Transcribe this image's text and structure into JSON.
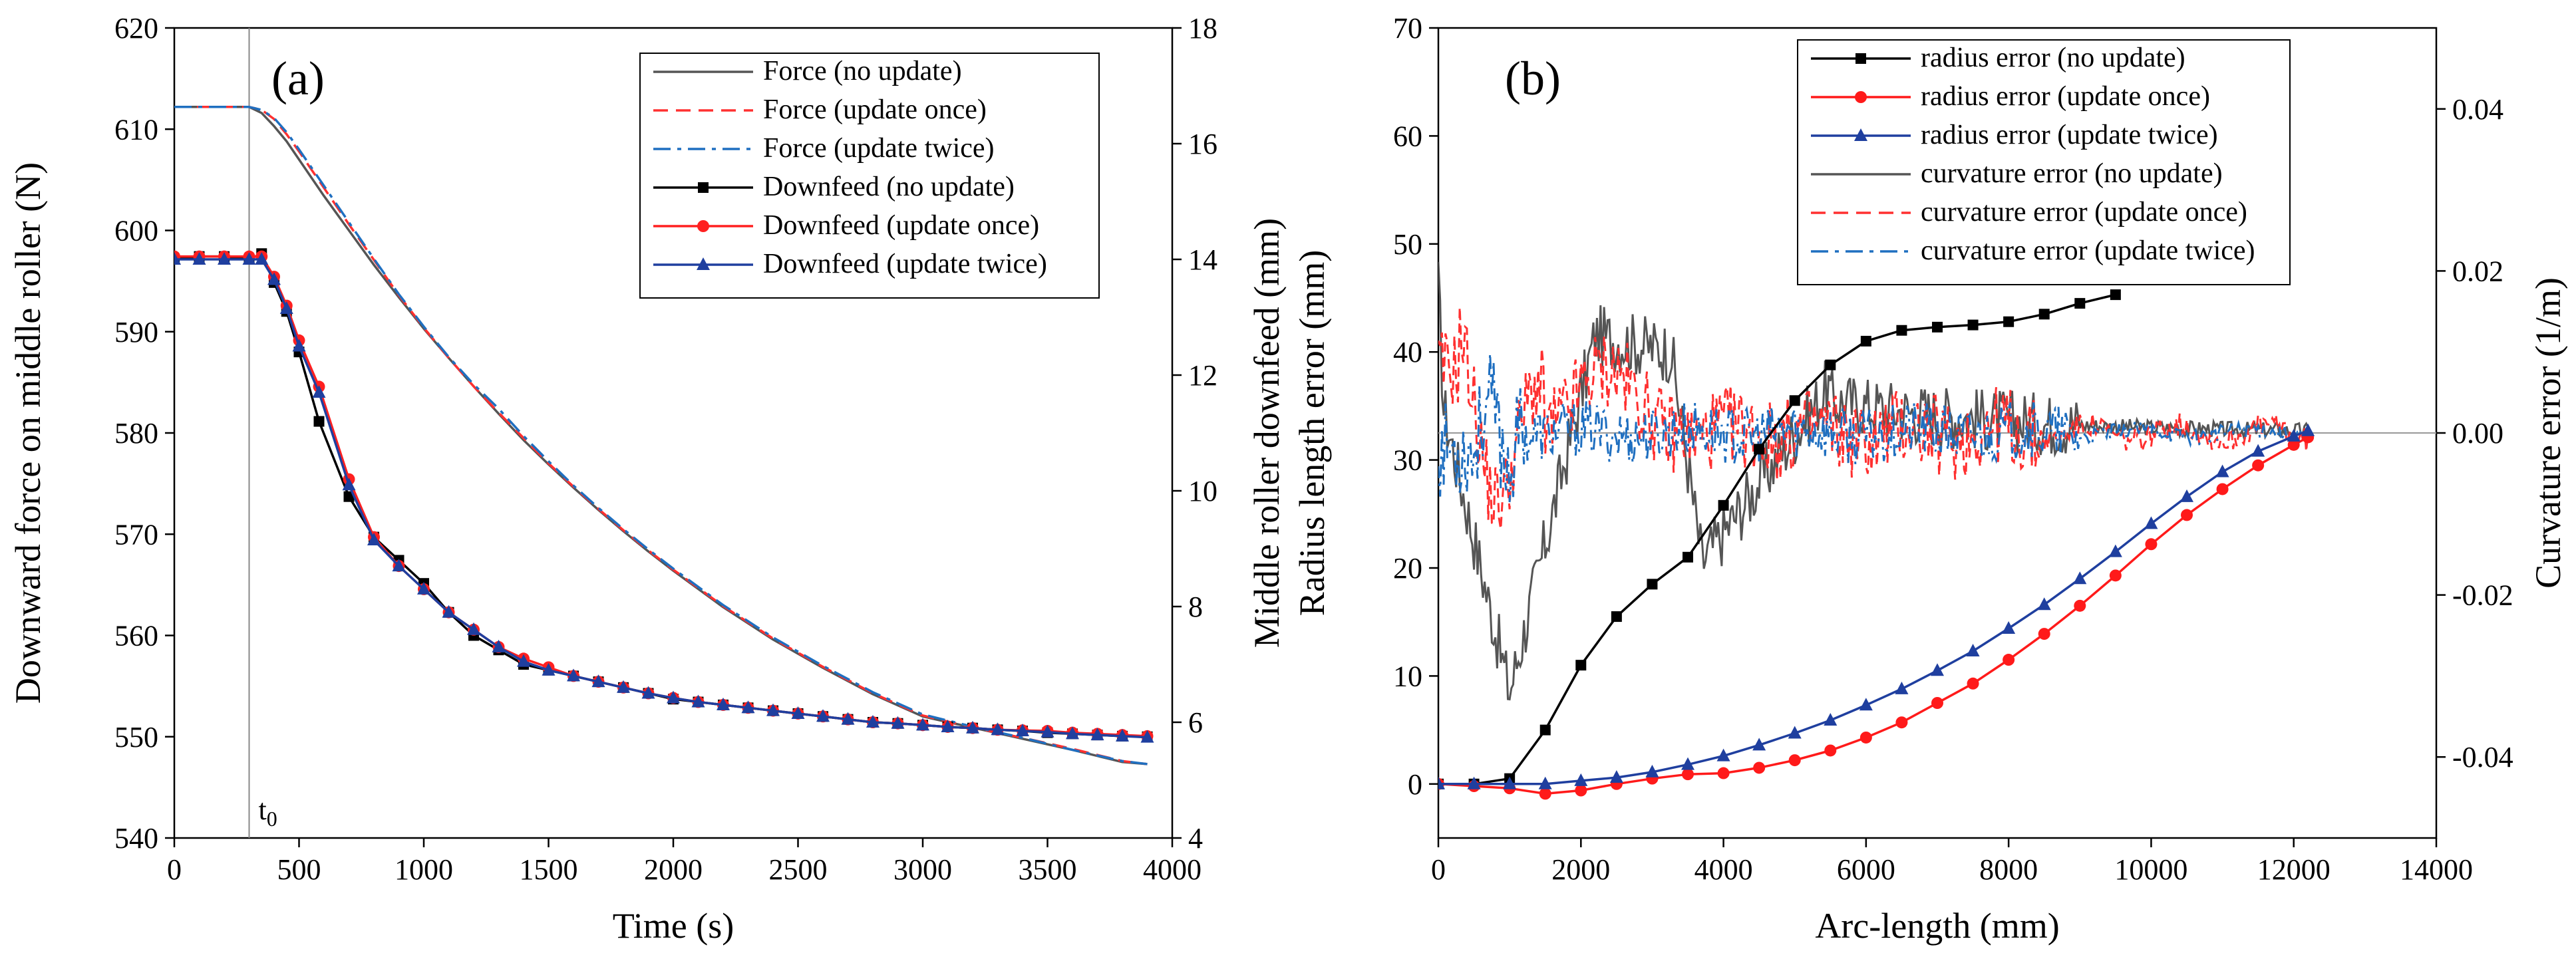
{
  "chart_data": [
    {
      "panel_label": "(a)",
      "type": "line",
      "xlabel": "Time (s)",
      "ylabel_left": "Downward force on middle roller (N)",
      "ylabel_right": "Middle roller downfeed (mm)",
      "xlim": [
        0,
        4000
      ],
      "ylim_left": [
        540,
        620
      ],
      "ylim_right": [
        4,
        18
      ],
      "x_ticks": [
        "0",
        "500",
        "1000",
        "1500",
        "2000",
        "2500",
        "3000",
        "3500",
        "4000"
      ],
      "y_left_ticks": [
        "540",
        "550",
        "560",
        "570",
        "580",
        "590",
        "600",
        "610",
        "620"
      ],
      "y_right_ticks": [
        "4",
        "6",
        "8",
        "10",
        "12",
        "14",
        "16",
        "18"
      ],
      "annotation": {
        "text": "t",
        "subscript": "0",
        "x": 300
      },
      "series": [
        {
          "name": "Force (no update)",
          "axis": "left",
          "color": "#555555",
          "dash": "solid",
          "marker": "none",
          "x": [
            0,
            300,
            350,
            400,
            450,
            500,
            600,
            700,
            800,
            900,
            1000,
            1100,
            1200,
            1300,
            1400,
            1500,
            1600,
            1700,
            1800,
            1900,
            2000,
            2200,
            2400,
            2600,
            2800,
            3000,
            3200,
            3400,
            3600,
            3800,
            3900
          ],
          "y": [
            612.2,
            612.2,
            611.6,
            610.3,
            608.8,
            607.0,
            603.4,
            600.0,
            596.6,
            593.4,
            590.3,
            587.4,
            584.6,
            581.9,
            579.3,
            576.9,
            574.6,
            572.4,
            570.3,
            568.3,
            566.4,
            562.8,
            559.6,
            556.8,
            554.2,
            552.0,
            550.9,
            549.8,
            548.7,
            547.5,
            547.3
          ]
        },
        {
          "name": "Force (update once)",
          "axis": "left",
          "color": "#ff3030",
          "dash": "dashed",
          "marker": "none",
          "x": [
            0,
            300,
            350,
            400,
            450,
            500,
            600,
            700,
            800,
            900,
            1000,
            1100,
            1200,
            1300,
            1400,
            1500,
            1600,
            1700,
            1800,
            1900,
            2000,
            2200,
            2400,
            2600,
            2800,
            3000,
            3200,
            3400,
            3600,
            3800,
            3900
          ],
          "y": [
            612.2,
            612.2,
            611.9,
            611.0,
            609.5,
            607.8,
            604.2,
            600.6,
            597.1,
            593.6,
            590.4,
            587.4,
            584.6,
            582.0,
            579.5,
            577.0,
            574.7,
            572.5,
            570.4,
            568.4,
            566.5,
            562.9,
            559.7,
            556.9,
            554.3,
            552.1,
            550.9,
            549.9,
            548.8,
            547.6,
            547.3
          ]
        },
        {
          "name": "Force (update twice)",
          "axis": "left",
          "color": "#1f6fc0",
          "dash": "dashdot",
          "marker": "none",
          "x": [
            0,
            300,
            350,
            400,
            450,
            500,
            600,
            700,
            800,
            900,
            1000,
            1100,
            1200,
            1300,
            1400,
            1500,
            1600,
            1700,
            1800,
            1900,
            2000,
            2200,
            2400,
            2600,
            2800,
            3000,
            3200,
            3400,
            3600,
            3800,
            3900
          ],
          "y": [
            612.2,
            612.2,
            611.9,
            611.1,
            609.7,
            608.0,
            604.4,
            600.8,
            597.2,
            593.7,
            590.5,
            587.5,
            584.8,
            582.4,
            579.7,
            577.2,
            574.8,
            572.6,
            570.5,
            568.5,
            566.6,
            563.0,
            559.8,
            557.0,
            554.4,
            552.2,
            551.0,
            549.9,
            548.7,
            547.6,
            547.3
          ]
        },
        {
          "name": "Downfeed (no update)",
          "axis": "right",
          "color": "#000000",
          "dash": "solid",
          "marker": "square",
          "x": [
            0,
            100,
            200,
            300,
            350,
            400,
            450,
            500,
            580,
            700,
            800,
            900,
            1000,
            1100,
            1200,
            1300,
            1400,
            1500,
            1600,
            1700,
            1800,
            1900,
            2000,
            2100,
            2200,
            2300,
            2400,
            2500,
            2600,
            2700,
            2800,
            2900,
            3000,
            3100,
            3200,
            3300,
            3400,
            3500,
            3600,
            3700,
            3800,
            3900
          ],
          "y": [
            14.0,
            14.05,
            14.05,
            14.0,
            14.1,
            13.6,
            13.1,
            12.4,
            11.2,
            9.9,
            9.2,
            8.8,
            8.4,
            7.9,
            7.5,
            7.25,
            7.0,
            6.9,
            6.8,
            6.7,
            6.6,
            6.5,
            6.4,
            6.35,
            6.3,
            6.25,
            6.2,
            6.15,
            6.1,
            6.05,
            6.0,
            5.98,
            5.95,
            5.92,
            5.9,
            5.87,
            5.85,
            5.82,
            5.8,
            5.78,
            5.76,
            5.75
          ]
        },
        {
          "name": "Downfeed (update once)",
          "axis": "right",
          "color": "#ff2020",
          "dash": "solid",
          "marker": "circle",
          "x": [
            0,
            100,
            200,
            300,
            350,
            400,
            450,
            500,
            580,
            700,
            800,
            900,
            1000,
            1100,
            1200,
            1300,
            1400,
            1500,
            1600,
            1700,
            1800,
            1900,
            2000,
            2100,
            2200,
            2300,
            2400,
            2500,
            2600,
            2700,
            2800,
            2900,
            3000,
            3100,
            3200,
            3300,
            3400,
            3500,
            3600,
            3700,
            3800,
            3900
          ],
          "y": [
            14.05,
            14.05,
            14.05,
            14.05,
            14.05,
            13.7,
            13.2,
            12.6,
            11.8,
            10.2,
            9.2,
            8.7,
            8.3,
            7.9,
            7.6,
            7.3,
            7.1,
            6.95,
            6.8,
            6.7,
            6.6,
            6.5,
            6.42,
            6.35,
            6.3,
            6.25,
            6.2,
            6.15,
            6.1,
            6.05,
            6.0,
            5.98,
            5.95,
            5.92,
            5.9,
            5.87,
            5.86,
            5.85,
            5.82,
            5.8,
            5.78,
            5.76
          ]
        },
        {
          "name": "Downfeed (update twice)",
          "axis": "right",
          "color": "#1f3f9f",
          "dash": "solid",
          "marker": "triangle",
          "x": [
            0,
            100,
            200,
            300,
            350,
            400,
            450,
            500,
            580,
            700,
            800,
            900,
            1000,
            1100,
            1200,
            1300,
            1400,
            1500,
            1600,
            1700,
            1800,
            1900,
            2000,
            2100,
            2200,
            2300,
            2400,
            2500,
            2600,
            2700,
            2800,
            2900,
            3000,
            3100,
            3200,
            3300,
            3400,
            3500,
            3600,
            3700,
            3800,
            3900
          ],
          "y": [
            14.0,
            14.0,
            14.0,
            14.0,
            14.0,
            13.65,
            13.15,
            12.5,
            11.7,
            10.1,
            9.15,
            8.7,
            8.3,
            7.9,
            7.6,
            7.3,
            7.05,
            6.9,
            6.8,
            6.7,
            6.6,
            6.5,
            6.42,
            6.35,
            6.3,
            6.25,
            6.2,
            6.15,
            6.1,
            6.05,
            6.0,
            5.98,
            5.95,
            5.92,
            5.9,
            5.87,
            5.85,
            5.83,
            5.8,
            5.78,
            5.76,
            5.74
          ]
        }
      ]
    },
    {
      "panel_label": "(b)",
      "type": "line",
      "xlabel": "Arc-length (mm)",
      "ylabel_left": "Radius length error (mm)",
      "ylabel_right": "Curvature error (1/m)",
      "xlim": [
        0,
        14000
      ],
      "ylim_left": [
        -5,
        70
      ],
      "ylim_right": [
        -0.05,
        0.05
      ],
      "x_ticks": [
        "0",
        "2000",
        "4000",
        "6000",
        "8000",
        "10000",
        "12000",
        "14000"
      ],
      "y_left_ticks": [
        "0",
        "10",
        "20",
        "30",
        "40",
        "50",
        "60",
        "70"
      ],
      "y_right_ticks": [
        "-0.04",
        "-0.02",
        "0.00",
        "0.02",
        "0.04"
      ],
      "series": [
        {
          "name": "radius error (no update)",
          "axis": "left",
          "color": "#000000",
          "dash": "solid",
          "marker": "square",
          "x": [
            0,
            500,
            1000,
            1500,
            2000,
            2500,
            3000,
            3500,
            4000,
            4500,
            5000,
            5500,
            6000,
            6500,
            7000,
            7500,
            8000,
            8500,
            9000,
            9500
          ],
          "y": [
            0,
            0,
            0.5,
            5,
            11,
            15.5,
            18.5,
            21,
            25.8,
            31,
            35.5,
            38.8,
            41,
            42,
            42.3,
            42.5,
            42.8,
            43.5,
            44.5,
            45.3
          ]
        },
        {
          "name": "radius error (update once)",
          "axis": "left",
          "color": "#ff1a1a",
          "dash": "solid",
          "marker": "circle",
          "x": [
            0,
            500,
            1000,
            1500,
            2000,
            2500,
            3000,
            3500,
            4000,
            4500,
            5000,
            5500,
            6000,
            6500,
            7000,
            7500,
            8000,
            8500,
            9000,
            9500,
            10000,
            10500,
            11000,
            11500,
            12000,
            12200
          ],
          "y": [
            0,
            -0.2,
            -0.4,
            -0.9,
            -0.6,
            0,
            0.5,
            0.9,
            1,
            1.5,
            2.2,
            3.1,
            4.3,
            5.7,
            7.5,
            9.3,
            11.5,
            13.9,
            16.5,
            19.3,
            22.2,
            24.9,
            27.3,
            29.5,
            31.4,
            32.1
          ]
        },
        {
          "name": "radius error (update twice)",
          "axis": "left",
          "color": "#1f3f9f",
          "dash": "solid",
          "marker": "triangle",
          "x": [
            0,
            500,
            1000,
            1500,
            2000,
            2500,
            3000,
            3500,
            4000,
            4500,
            5000,
            5500,
            6000,
            6500,
            7000,
            7500,
            8000,
            8500,
            9000,
            9500,
            10000,
            10500,
            11000,
            11500,
            12000,
            12200
          ],
          "y": [
            0,
            0,
            0,
            0,
            0.3,
            0.6,
            1.1,
            1.8,
            2.6,
            3.6,
            4.7,
            5.9,
            7.3,
            8.8,
            10.5,
            12.3,
            14.4,
            16.6,
            19.0,
            21.5,
            24.1,
            26.6,
            28.9,
            30.8,
            32.2,
            32.7
          ]
        },
        {
          "name": "curvature error (no update)",
          "axis": "right",
          "color": "#555555",
          "dash": "solid",
          "marker": "none",
          "x": [],
          "y": []
        },
        {
          "name": "curvature error (update once)",
          "axis": "right",
          "color": "#ff3030",
          "dash": "dashed",
          "marker": "none",
          "x": [],
          "y": []
        },
        {
          "name": "curvature error (update twice)",
          "axis": "right",
          "color": "#1f6fc0",
          "dash": "dashdot",
          "marker": "none",
          "x": [],
          "y": []
        }
      ]
    }
  ]
}
